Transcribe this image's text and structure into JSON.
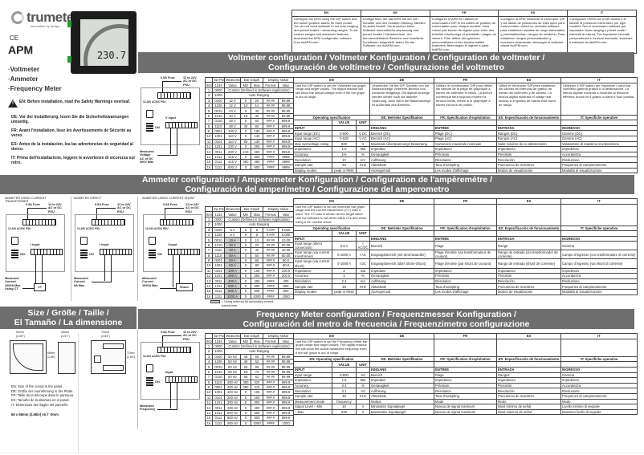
{
  "brand": {
    "name": "trumeter",
    "tagline": "innovation by design",
    "ce": "CE",
    "model": "APM"
  },
  "meter_display": "230.7",
  "product_types": [
    "·Voltmeter",
    "·Ammeter",
    "·Frequency Meter"
  ],
  "warnings": [
    {
      "lang": "EN:",
      "text": "Before installation, read the Safety Warnings overleaf."
    },
    {
      "lang": "DE:",
      "text": "Vor der Installierung, lesen Sie die Sicherheitswarnungen umseitig."
    },
    {
      "lang": "FR:",
      "text": "Avant l'installation, lisez les Avertissements de Sécurité au verso."
    },
    {
      "lang": "ES:",
      "text": "Antes de la instalación, lea las advertencias de seguridad al dorso."
    },
    {
      "lang": "IT:",
      "text": "Prima dell'installazione, leggere le avvertenze di sicurezza sul retro."
    }
  ],
  "intro": {
    "headers": [
      "EN",
      "DE",
      "FR",
      "ES",
      "IT"
    ],
    "texts": [
      "Configure the APM using the DIP switch and the switch position tables for each model. You do not need software to set auto-ranging and preset scales / measuring ranges. To set custom ranges and advanced features, download the APM configurator software from itsAPM.com.",
      "Konfigurieren Sie das APM mit der DIP-Schalter und den Schalter-Stellung-Tabellen für jedes Modell. Sie brauchen keine Software automatische Anpassung und preset Scales / Messbereiche. Um benutzerdefinierte Bereiche und erweiterte Funktionen eingestellt, laden Sie die Software von itsAPM.com.",
      "Configurez le APM en utilisant le commutateur DIP et les tables de position de commutation pour chaque modèle. Vous n'avez pas besoin de logiciel pour créer des échelles d'autorange et préétablis / plages de mesure. Pour définir des gammes personnalisées et des fonctionnalités avancées, téléchargez le logiciel à partir itsAPM.com.",
      "Configure la APM mediante el interruptor DIP y las tablas de posiciones de interruptor para cada modelo. Usted no necesita software para establecer escalas de rango automático y preestablecidas / rangos de medición. Para establecer rangos personalizados y funciones avanzadas, descargar el software desde itsAPM.com.",
      "Configurare l'APM con il DIP-switch e le tabelle di posizione interruttore per ogni modello. Non è necessario software per impostare l'auto-ranging e preset scale / intervalli di misura. Per impostare intervalli personalizzati e funzioni avanzate, scaricare il software da itsAPM.com."
    ]
  },
  "switch_header": {
    "top": [
      "",
      "Sw Pos",
      "Measured",
      "Bar Graph",
      "Display Value"
    ],
    "sub": [
      "Item",
      "1234",
      "Value",
      "Min",
      "Max",
      "Format",
      "Max"
    ]
  },
  "voltmeter": {
    "banner": [
      "Voltmeter configuration / Voltmeter Konfiguration / Configuration de voltmeter /",
      "Configuración de voltímetro / Configurazione del voltmetro"
    ],
    "diagram": {
      "fuse": "0.5A Fuse",
      "psu": "12 to 24V\nAC or DC\nPSU",
      "terminal": "12-24V AC/DC PSU",
      "input": "V input",
      "dip": "ON",
      "measured": "Measured\nVoltage\nAC or DC\n600V Max"
    },
    "rows": [
      [
        "1",
        "0000",
        "Custom (Defined in Software Application)"
      ],
      [
        "2",
        "1000",
        "Auto Ranging"
      ],
      [
        "3",
        "0100",
        "12 V",
        "0",
        "20",
        "##.##",
        "99.99"
      ],
      [
        "4",
        "1100",
        "12 V",
        "10",
        "14",
        "##.##",
        "99.99"
      ],
      [
        "5",
        "0010",
        "24 V",
        "0",
        "40",
        "##.##",
        "99.99"
      ],
      [
        "6",
        "1010",
        "24 V",
        "18",
        "30",
        "##.##",
        "99.99"
      ],
      [
        "7",
        "0110",
        "48 V",
        "0",
        "60",
        "###.#",
        "999.9"
      ],
      [
        "8",
        "1110",
        "48 V",
        "40",
        "60",
        "###.#",
        "999.9"
      ],
      [
        "9",
        "0001",
        "100 V",
        "0",
        "100",
        "###.#",
        "999.9"
      ],
      [
        "10",
        "1001",
        "110 V",
        "0",
        "140",
        "###.#",
        "999.9"
      ],
      [
        "11",
        "0101",
        "110 V",
        "80",
        "130",
        "###.#",
        "999.9"
      ],
      [
        "12",
        "1101",
        "230 V",
        "0",
        "300",
        "###.#",
        "999.9"
      ],
      [
        "13",
        "0011",
        "230 V",
        "210",
        "250",
        "###.#",
        "999.9"
      ],
      [
        "14",
        "1011",
        "415 V",
        "0",
        "500",
        "####",
        "9999"
      ],
      [
        "15",
        "0111",
        "415 V",
        "380",
        "450",
        "####",
        "9999"
      ],
      [
        "16",
        "1111",
        "600 V",
        "0",
        "600",
        "####",
        "9999"
      ]
    ],
    "spec": {
      "langs": [
        "EN",
        "DE",
        "FR",
        "ES",
        "IT"
      ],
      "desc": [
        "Use the DIP switch to set the Voltmeter bar graph range and target values. The digital readout will still show the actual voltage even if the bar graph is out of range.",
        "Verwenden Sie die DIP-Schalter, um die Balkenanzeige Voltmeter-Bereich und Zielwerte festgelegt. Die digitale Anzeige werden immer noch die aktuelle Spannung, auch wenn die Balkenanzeige ist außerhalb des Bereichs.",
        "Utilisez le commutateur DIP pour définir les valeurs de la plage de graphique à barres de voltmètre et cibles. La lecture numérique sera toujours montrer la tension réelle, même si le graphique à barres est hors de portée.",
        "Utilice el interruptor DIP para establecer los valores del intervalo de gráfico de barras del voltímetro y de destino. La lectura digital mostrará el voltaje real incluso si el gráfico de barras está fuera de rango.",
        "Utilizzare il DIP-switch per impostare i valori bar voltmetro gamma grafica e di destinazione. La lettura digitale continua a mostrare la tensione effettiva, anche se il grafico a barre è fuori portata."
      ],
      "titles": [
        "Operating specification",
        "DE: Betriebs Spezifikation",
        "FR: Spécification d'exploitation",
        "ES: Especificación de funcionamiento",
        "IT: Specifiche operative"
      ],
      "value_h": "VALUE",
      "unit_h": "UNIT",
      "rows": [
        [
          "INPUT",
          "",
          "",
          "EINGANG",
          "ENTRÉE",
          "ENTRADA",
          "INGRESSO"
        ],
        [
          "Input range (DC)",
          "0-600",
          "V DC",
          "Bereich (DC)",
          "Plage (DC)",
          "Rangos (DC)",
          "Gamme (DC)"
        ],
        [
          "Input range (AC)",
          "0-528",
          "V AC",
          "Bereich (AC)",
          "Plage (AC)",
          "Rangos (AC)",
          "Gamme (AC)"
        ],
        [
          "Max overvoltage rating",
          "600",
          "V",
          "Maximale Überspannungs Bewertung",
          "Surtension maximale nominale",
          "Valor máximo de la sobretensión",
          "Valutazione di massima sovratensione"
        ],
        [
          "Impedance",
          "1.8",
          "MΩ",
          "Impedanz",
          "Impédance",
          "Impedancia",
          "Impedenza"
        ],
        [
          "Accuracy",
          "1%",
          "%",
          "Genauigkeit",
          "Précision",
          "Precisión",
          "Accuratezza"
        ],
        [
          "Resolution",
          "10",
          "mV",
          "Auflösung",
          "Résolution",
          "Resolución",
          "Risoluzione"
        ],
        [
          "Sample rate",
          "48",
          "KHz",
          "Abtastrate",
          "Taux d'sampling",
          "Frecuencia de muestreo",
          "Frequenza di campionamento"
        ],
        [
          "Display modes",
          "peak or RMS",
          "",
          "Anzeigemodi",
          "Les modes d'affichage",
          "Modos de visualización",
          "Modalità di visualizzazione"
        ]
      ]
    }
  },
  "ammeter": {
    "banner": [
      "Ammeter configuration / Amperemeter Konfiguration / Configuration de l'ampèremètre /",
      "Configuración del amperímetro / Configurazione del amperometro"
    ],
    "diagrams": [
      {
        "title": "AMMETER USING CURRENT\nTRANSFORMER",
        "fuse": "0.5A Fuse",
        "psu": "12 to 24V\nAC or DC\nPSU",
        "terminal": "12-24V AC/DC PSU",
        "input": "I input",
        "dip": "ON",
        "measured": "Measured\nCurrent\n1000A Max\nUsing CT",
        "extra": "CT"
      },
      {
        "title": "AMMETER DIRECT",
        "fuse": "0.5A Fuse",
        "psu": "12 to 24V\nAC or DC\nPSU",
        "terminal": "12-24V AC/DC PSU",
        "input": "I input",
        "dip": "ON",
        "measured": "Measured\nCurrent\n5A Max"
      },
      {
        "title": "AMMETER USING CURRENT SHUNT",
        "fuse": "0.5A Fuse",
        "psu": "12 to 24V\nAC or DC\nPSU",
        "terminal": "12-24V AC/DC PSU",
        "input": "I input",
        "dip": "ON",
        "measured": "Measured\nCurrent\n1000A Max",
        "extra": "Shunt"
      }
    ],
    "shaded_items": [
      "5",
      "6",
      "7",
      "8",
      "9",
      "10",
      "11",
      "12",
      "13",
      "14",
      "15",
      "16"
    ],
    "shade_note": "= Using external 5A secondary current transformer",
    "rows": [
      [
        "1",
        "0000",
        "Custom (Defined in Software Application)"
      ],
      [
        "2",
        "1000",
        "Auto Ranging"
      ],
      [
        "3",
        "0100",
        "5 A",
        "0",
        "5",
        "#.###",
        "5.000"
      ],
      [
        "4",
        "1100",
        "6 A",
        "0",
        "6",
        "#.###",
        "6.000"
      ],
      [
        "5",
        "0010",
        "10 A",
        "0",
        "10",
        "##.##",
        "10.00"
      ],
      [
        "6",
        "1010",
        "20 A",
        "0",
        "20",
        "##.##",
        "20.00"
      ],
      [
        "7",
        "0110",
        "40 A",
        "0",
        "40",
        "##.##",
        "40.00"
      ],
      [
        "8",
        "1110",
        "50 A",
        "0",
        "50",
        "##.##",
        "50.00"
      ],
      [
        "9",
        "0001",
        "60 A",
        "0",
        "60",
        "###.#",
        "60.0"
      ],
      [
        "10",
        "1001",
        "80 A",
        "0",
        "80",
        "###.#",
        "80.0"
      ],
      [
        "11",
        "0101",
        "100 A",
        "0",
        "100",
        "###.#",
        "100.0"
      ],
      [
        "12",
        "1101",
        "200 A",
        "0",
        "200",
        "###.#",
        "200.0"
      ],
      [
        "13",
        "0011",
        "400 A",
        "0",
        "400",
        "####",
        "400"
      ],
      [
        "14",
        "1011",
        "600 A",
        "0",
        "600",
        "####",
        "600"
      ],
      [
        "15",
        "0111",
        "800 A",
        "0",
        "800",
        "####",
        "800"
      ],
      [
        "16",
        "1111",
        "1000 A",
        "0",
        "1000",
        "####",
        "1000"
      ]
    ],
    "spec": {
      "langs": [
        "EN",
        "DE",
        "FR",
        "ES",
        "IT"
      ],
      "desc": [
        "Use the DIP switch to set the Ammeter bar graph range and the current transformer (CT) ratio if used. The CT ratio is shown as the target value. Use the software to set other value CTs and when using a DC current shunt.",
        "",
        "",
        "",
        ""
      ],
      "titles": [
        "Operating specification",
        "DE: Betriebs Spezifikation",
        "FR: Spécification d'exploitation",
        "ES: Especificación de funcionamiento",
        "IT: Specifiche operative"
      ],
      "value_h": "VALUE",
      "unit_h": "UNIT",
      "rows": [
        [
          "INPUT",
          "",
          "",
          "EINGANG",
          "ENTRÉE",
          "ENTRADA",
          "INGRESSO"
        ],
        [
          "Input range (direct connection)",
          "0-5 A",
          "I AC/DC",
          "Bereich",
          "Plage",
          "Rango",
          "Gamma"
        ],
        [
          "Input range (via current transformer)",
          "0-1000 A",
          "I AC",
          "Eingangsbereich (mit Stromwandler)",
          "Plage d'entrée (via transformateur de courant)",
          "Rango de entrada (vía transformador de corriente)",
          "Campo d'ingresso (con trasformatore di corrente)"
        ],
        [
          "Input range (via current shunt)",
          "0-1000 A",
          "I DC",
          "Eingangsbereich (über Strom-Shunt)",
          "Plage d'entrée (par shunt de courant)",
          "Rango de entrada (shunt de corriente)",
          "Campo d'ingresso (via shunt di corrente)"
        ],
        [
          "Impedance",
          "2",
          "mΩ",
          "Impedanz",
          "Impédance",
          "Impedancia",
          "Impedenza"
        ],
        [
          "Accuracy",
          "1",
          "%",
          "Genauigkeit",
          "Précision",
          "Precisión",
          "Accuratezza"
        ],
        [
          "Resolution",
          "2.4",
          "mA",
          "Auflösung",
          "Résolution",
          "Resolución",
          "Risoluzione"
        ],
        [
          "Sample rate",
          "48",
          "KHz",
          "Abtastrate",
          "Taux d'sampling",
          "Frecuencia de muestreo",
          "Frequenza di campionamento"
        ],
        [
          "Display modes",
          "peak or RMS",
          "",
          "Anzeigemodi",
          "Les modes d'affichage",
          "Modos de visualización",
          "Modalità di visualizzazione"
        ]
      ]
    }
  },
  "size": {
    "banner": [
      "Size / Größe / Taille /",
      "El Tamaño / La dimensione"
    ],
    "dims": [
      "52mm\n(2.05\")",
      "40mm\n(1.57\")",
      "72mm\n(2.83\")",
      "68mm\n(2.68\")",
      "72mm\n(2.83\")"
    ],
    "texts": [
      "EN: Size of the cutout in the panel.",
      "DE: Größe der Ausnehmung in der Platte.",
      "FR: Taille de la découpe dans le panneau.",
      "ES: Tamaño de la abertura en el panel.",
      "IT: Dimensioni del ritaglio nel pannello."
    ],
    "cutout": "68 x 68mm (2.68in) ±0.7 -0mm"
  },
  "frequency": {
    "banner": [
      "Frequency Meter configuration / Frequenzmesser Konfiguration /",
      "Configuración del metro de frecuencia / Frequenzimetro configurazione"
    ],
    "diagram": {
      "fuse": "0.5A Fuse",
      "psu": "12 to 24V\nAC or DC\nPSU",
      "terminal": "12-24V AC/DC PSU",
      "input": "Input",
      "dip": "ON",
      "measured": "Measured\nFrequency"
    },
    "rows": [
      [
        "1",
        "0000",
        "Custom (Defined in Software Application)"
      ],
      [
        "2",
        "1000",
        "Auto Ranging"
      ],
      [
        "3",
        "0100",
        "50 Hz",
        "45",
        "55",
        "##.##",
        "99.99"
      ],
      [
        "4",
        "1100",
        "50 Hz",
        "48",
        "52",
        "##.##",
        "99.99"
      ],
      [
        "5",
        "0010",
        "60 Hz",
        "55",
        "65",
        "##.##",
        "99.99"
      ],
      [
        "6",
        "1010",
        "60 Hz",
        "50",
        "70",
        "##.##",
        "99.99"
      ],
      [
        "7",
        "0110",
        "60 Hz",
        "58",
        "62",
        "##.##",
        "99.99"
      ],
      [
        "8",
        "1110",
        "400 Hz",
        "380",
        "420",
        "###.#",
        "999.9"
      ],
      [
        "9",
        "0001",
        "400 Hz",
        "390",
        "410",
        "###.#",
        "999.9"
      ],
      [
        "10",
        "1001",
        "100 Hz",
        "0",
        "100",
        "###.#",
        "999.9"
      ],
      [
        "11",
        "0101",
        "200 Hz",
        "0",
        "200",
        "###.#",
        "999.9"
      ],
      [
        "12",
        "1101",
        "300 Hz",
        "0",
        "300",
        "###.#",
        "999.9"
      ],
      [
        "13",
        "0011",
        "400 Hz",
        "0",
        "400",
        "###.#",
        "999.9"
      ],
      [
        "14",
        "1011",
        "500 Hz",
        "0",
        "500",
        "###.#",
        "999.9"
      ],
      [
        "15",
        "0111",
        "800 Hz",
        "0",
        "800",
        "###.#",
        "999.9"
      ],
      [
        "16",
        "1111",
        "400 Hz",
        "0",
        "1000",
        "####",
        "1000"
      ]
    ],
    "spec": {
      "langs": [
        "EN",
        "DE",
        "FR",
        "ES",
        "IT"
      ],
      "desc": [
        "Use the DIP switch to set the Frequency Meter bar graph range and target values. The digital readout will still show the actual measured frequency even if the bar graph is out of range.",
        "",
        "",
        "",
        ""
      ],
      "titles": [
        "EN: Operating specification",
        "DE: Betriebs Spezifikation",
        "FR: Spécification d'exploitation",
        "ES: Especificación de funcionamiento",
        "IT: Specifiche operative"
      ],
      "value_h": "VALUE",
      "unit_h": "UNIT",
      "rows": [
        [
          "INPUT",
          "",
          "",
          "EINGANG",
          "ENTRÉE",
          "ENTRADA",
          "INGRESSO"
        ],
        [
          "Input range",
          "0-800",
          "Hz",
          "Bereich",
          "Plage",
          "Rangos",
          "Gamma"
        ],
        [
          "Impedance",
          "1.5",
          "MΩ",
          "Impedanz",
          "Impédance",
          "Impedancia",
          "Impedenza"
        ],
        [
          "Accuracy",
          "0.1",
          "%",
          "Genauigkeit",
          "Précision",
          "Precisión",
          "Accuratezza"
        ],
        [
          "Resolution",
          "0.1",
          "Hz",
          "Auflösung",
          "Résolution",
          "Resolución",
          "Risoluzione"
        ],
        [
          "Sample rate",
          "48",
          "KHz",
          "Abtastrate",
          "Taux d'sampling",
          "Frecuencia de muestreo",
          "Frequenza di campionamento"
        ],
        [
          "Measurement mode",
          "frequency",
          "",
          "Modus",
          "Mode",
          "Modo",
          "Modo"
        ],
        [
          "Signal Level – Min",
          "10",
          "V",
          "Minimalen Signalpegel",
          "Niveau de signal minimum",
          "Nivel mínimo de señal",
          "Livello minimo di segnale"
        ],
        [
          "– Max",
          "528",
          "V",
          "Maximalen Signalpegel",
          "Niveau de signal maximum",
          "Nivel máximo de señal",
          "Massimo livello di segnale"
        ]
      ]
    }
  }
}
